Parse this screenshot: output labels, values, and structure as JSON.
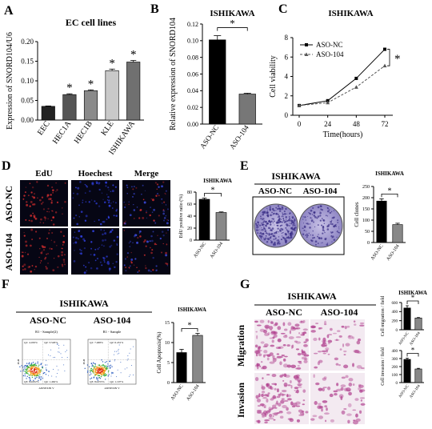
{
  "panels": {
    "A": {
      "letter": "A",
      "title": "EC cell lines"
    },
    "B": {
      "letter": "B",
      "title": "ISHIKAWA"
    },
    "C": {
      "letter": "C",
      "title": "ISHIKAWA"
    },
    "D": {
      "letter": "D",
      "col_headers": [
        "EdU",
        "Hoechest",
        "Merge"
      ],
      "row_labels": [
        "ASO-NC",
        "ASO-104"
      ]
    },
    "E": {
      "letter": "E",
      "title": "ISHIKAWA",
      "col_headers": [
        "ASO-NC",
        "ASO-104"
      ]
    },
    "F": {
      "letter": "F",
      "title": "ISHIKAWA",
      "col_headers": [
        "ASO-NC",
        "ASO-104"
      ],
      "flow_titles": [
        "R1 - Sample(2)",
        "R1 - Sample"
      ],
      "quadrants": [
        {
          "q1": "Q1: 4.450%",
          "q2": "Q2: 3.526%",
          "q3": "Q3: 84.002%",
          "q4": "Q4: 1.462%"
        },
        {
          "q1": "Q1: 7.468%",
          "q2": "Q2: 6.431%",
          "q3": "Q3: 84.055%",
          "q4": "Q4: 1.197%"
        }
      ],
      "flow_xlabel": "ANNEXIN V",
      "flow_ylabel": "PI-H"
    },
    "G": {
      "letter": "G",
      "title": "ISHIKAWA",
      "col_headers": [
        "ASO-NC",
        "ASO-104"
      ],
      "row_labels": [
        "Migration",
        "Invasion"
      ]
    }
  },
  "chart_data": [
    {
      "id": "A",
      "type": "bar",
      "title": "EC cell lines",
      "categories": [
        "EEC",
        "HEC1A",
        "HEC1B",
        "KLE",
        "ISHIKAWA"
      ],
      "values": [
        0.035,
        0.065,
        0.075,
        0.126,
        0.148
      ],
      "errors": [
        0.001,
        0.002,
        0.002,
        0.004,
        0.004
      ],
      "significance": [
        "",
        "*",
        "*",
        "*",
        "*"
      ],
      "colors": [
        "#222222",
        "#555555",
        "#8a8a8a",
        "#c9c9c9",
        "#707070"
      ],
      "ylabel": "Expression of SNORD104/U6",
      "ylim": [
        0,
        0.2
      ],
      "yticks": [
        "0.00",
        "0.05",
        "0.10",
        "0.15",
        "0.20"
      ]
    },
    {
      "id": "B",
      "type": "bar",
      "title": "ISHIKAWA",
      "categories": [
        "ASO-NC",
        "ASO-104"
      ],
      "values": [
        0.101,
        0.036
      ],
      "errors": [
        0.005,
        0.001
      ],
      "colors": [
        "#000000",
        "#777777"
      ],
      "ylabel": "Relative expression of SNORD104",
      "ylim": [
        0,
        0.12
      ],
      "yticks": [
        "0.00",
        "0.02",
        "0.04",
        "0.06",
        "0.08",
        "0.10",
        "0.12"
      ],
      "significance": "*"
    },
    {
      "id": "C",
      "type": "line",
      "title": "ISHIKAWA",
      "x": [
        0,
        24,
        48,
        72
      ],
      "series": [
        {
          "name": "ASO-NC",
          "values": [
            1.0,
            1.5,
            3.8,
            6.8
          ],
          "color": "#000000",
          "dash": false
        },
        {
          "name": "ASO-104",
          "values": [
            1.0,
            1.3,
            2.9,
            5.1
          ],
          "color": "#555555",
          "dash": true
        }
      ],
      "xlabel": "Time(hours)",
      "ylabel": "Cell viability",
      "ylim": [
        0,
        8
      ],
      "yticks": [
        "0",
        "2",
        "4",
        "6",
        "8"
      ],
      "xticks": [
        "0",
        "24",
        "48",
        "72"
      ],
      "significance": "*"
    },
    {
      "id": "D",
      "type": "bar",
      "title": "ISHIKAWA",
      "categories": [
        "ASO-NC",
        "ASO-104"
      ],
      "values": [
        68,
        46
      ],
      "errors": [
        2,
        1
      ],
      "colors": [
        "#000000",
        "#888888"
      ],
      "ylabel": "EdU positive ratio (%)",
      "ylim": [
        0,
        80
      ],
      "yticks": [
        "0",
        "20",
        "40",
        "60",
        "80"
      ],
      "significance": "*"
    },
    {
      "id": "E",
      "type": "bar",
      "title": "ISHIKAWA",
      "categories": [
        "ASO-NC",
        "ASO-104"
      ],
      "values": [
        185,
        80
      ],
      "errors": [
        10,
        6
      ],
      "colors": [
        "#000000",
        "#888888"
      ],
      "ylabel": "Cell clones",
      "ylim": [
        0,
        250
      ],
      "yticks": [
        "0",
        "50",
        "100",
        "150",
        "200",
        "250"
      ],
      "significance": "*"
    },
    {
      "id": "F",
      "type": "bar",
      "title": "ISHIKAWA",
      "categories": [
        "ASO-NC",
        "ASO-104"
      ],
      "values": [
        7.5,
        11.8
      ],
      "errors": [
        0.8,
        0.5
      ],
      "colors": [
        "#000000",
        "#888888"
      ],
      "ylabel": "Cell Apoptosis(%)",
      "ylim": [
        0,
        15
      ],
      "yticks": [
        "0",
        "5",
        "10",
        "15"
      ],
      "significance": "*"
    },
    {
      "id": "G1",
      "type": "bar",
      "title": "ISHIKAWA",
      "categories": [
        "ASO-NC",
        "ASO-104"
      ],
      "values": [
        480,
        260
      ],
      "errors": [
        50,
        10
      ],
      "colors": [
        "#000000",
        "#888888"
      ],
      "ylabel": "Cell migration / field",
      "ylim": [
        0,
        600
      ],
      "yticks": [
        "0",
        "200",
        "400",
        "600"
      ],
      "significance": "*"
    },
    {
      "id": "G2",
      "type": "bar",
      "categories": [
        "ASO-NC",
        "ASO-104"
      ],
      "values": [
        290,
        170
      ],
      "errors": [
        15,
        8
      ],
      "colors": [
        "#000000",
        "#888888"
      ],
      "ylabel": "Cell invasion / field",
      "ylim": [
        0,
        400
      ],
      "yticks": [
        "0",
        "100",
        "200",
        "300",
        "400"
      ],
      "significance": "*"
    }
  ]
}
